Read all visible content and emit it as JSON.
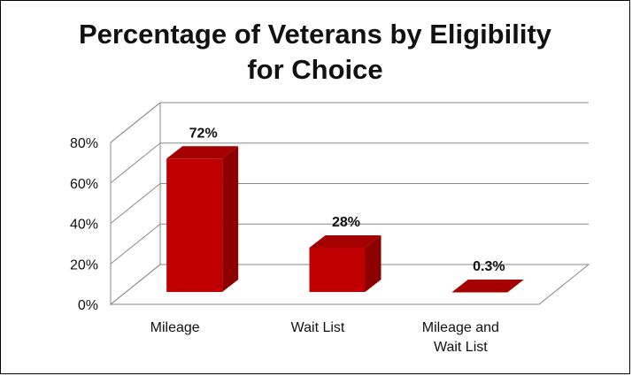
{
  "chart_data": {
    "type": "bar",
    "title": "Percentage of Veterans by Eligibility\nfor Choice",
    "categories": [
      "Mileage",
      "Wait List",
      "Mileage and\nWait List"
    ],
    "values": [
      72,
      28,
      0.3
    ],
    "data_labels": [
      "72%",
      "28%",
      "0.3%"
    ],
    "ylim": [
      0,
      80
    ],
    "yticks": [
      0,
      20,
      40,
      60,
      80
    ],
    "ytick_labels": [
      "0%",
      "20%",
      "40%",
      "60%",
      "80%"
    ],
    "grid": true,
    "legend": false,
    "style": "3d-column",
    "colors": {
      "bar_front": "#c00000",
      "bar_side": "#8c0000",
      "bar_top": "#a50000",
      "grid": "#888888"
    }
  }
}
